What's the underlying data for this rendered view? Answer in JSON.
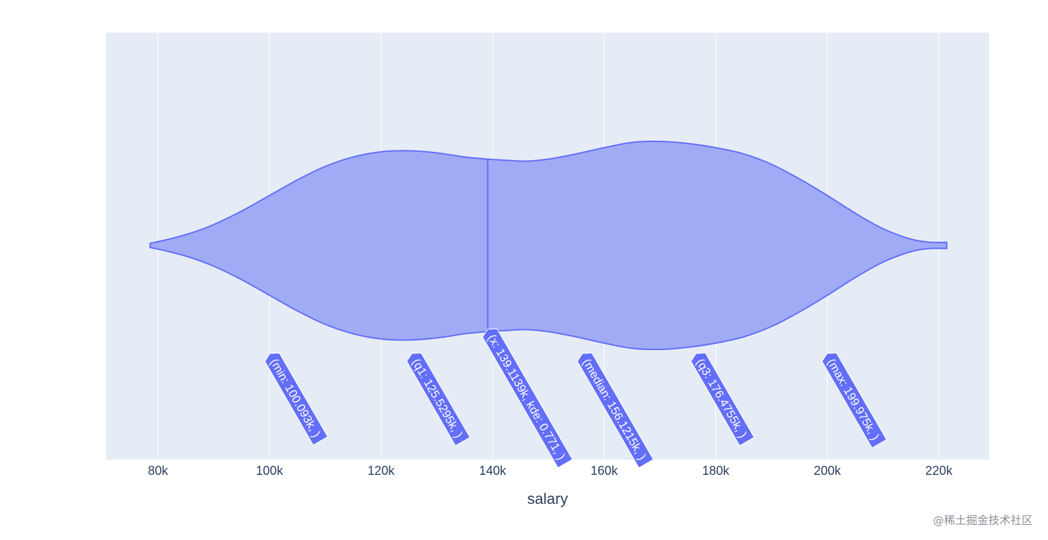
{
  "chart_data": {
    "type": "violin",
    "xlabel": "salary",
    "xlim": [
      70.7,
      229.0
    ],
    "ticks": [
      {
        "value": 80,
        "label": "80k"
      },
      {
        "value": 100,
        "label": "100k"
      },
      {
        "value": 120,
        "label": "120k"
      },
      {
        "value": 140,
        "label": "140k"
      },
      {
        "value": 160,
        "label": "160k"
      },
      {
        "value": 180,
        "label": "180k"
      },
      {
        "value": 200,
        "label": "200k"
      },
      {
        "value": 220,
        "label": "220k"
      }
    ],
    "grid": true,
    "density_profile": {
      "x": [
        78.6,
        82,
        86,
        90,
        95,
        100,
        105,
        110,
        115,
        120,
        125,
        130,
        135,
        139.1,
        142,
        146,
        150,
        155,
        160,
        165,
        170,
        175,
        180,
        185,
        190,
        195,
        200,
        205,
        210,
        215,
        218.5,
        221.4
      ],
      "half_width": [
        0.02,
        0.06,
        0.12,
        0.2,
        0.33,
        0.48,
        0.63,
        0.76,
        0.85,
        0.9,
        0.91,
        0.89,
        0.85,
        0.83,
        0.82,
        0.81,
        0.83,
        0.88,
        0.94,
        0.99,
        1.0,
        0.98,
        0.94,
        0.88,
        0.78,
        0.64,
        0.48,
        0.31,
        0.16,
        0.06,
        0.03,
        0.03
      ]
    },
    "hover_line_x": 139.1139,
    "hover_labels": [
      {
        "anchor": 100.093,
        "text": "(min: 100.093k, )"
      },
      {
        "anchor": 125.5295,
        "text": "(q1: 125.5295k, )"
      },
      {
        "anchor": 139.1139,
        "text": "(x: 139.1139k, kde: 0.771, )"
      },
      {
        "anchor": 156.1215,
        "text": "(median: 156.1215k, )"
      },
      {
        "anchor": 176.4755,
        "text": "(q3: 176.4755k, )"
      },
      {
        "anchor": 199.975,
        "text": "(max: 199.975k, )"
      }
    ],
    "colors": {
      "plot_bg": "#e5ecf6",
      "fill": "#a0abf5",
      "line": "#636efa",
      "grid": "#ffffff",
      "label_bg": "#636efa"
    }
  },
  "watermark": "@稀土掘金技术社区"
}
